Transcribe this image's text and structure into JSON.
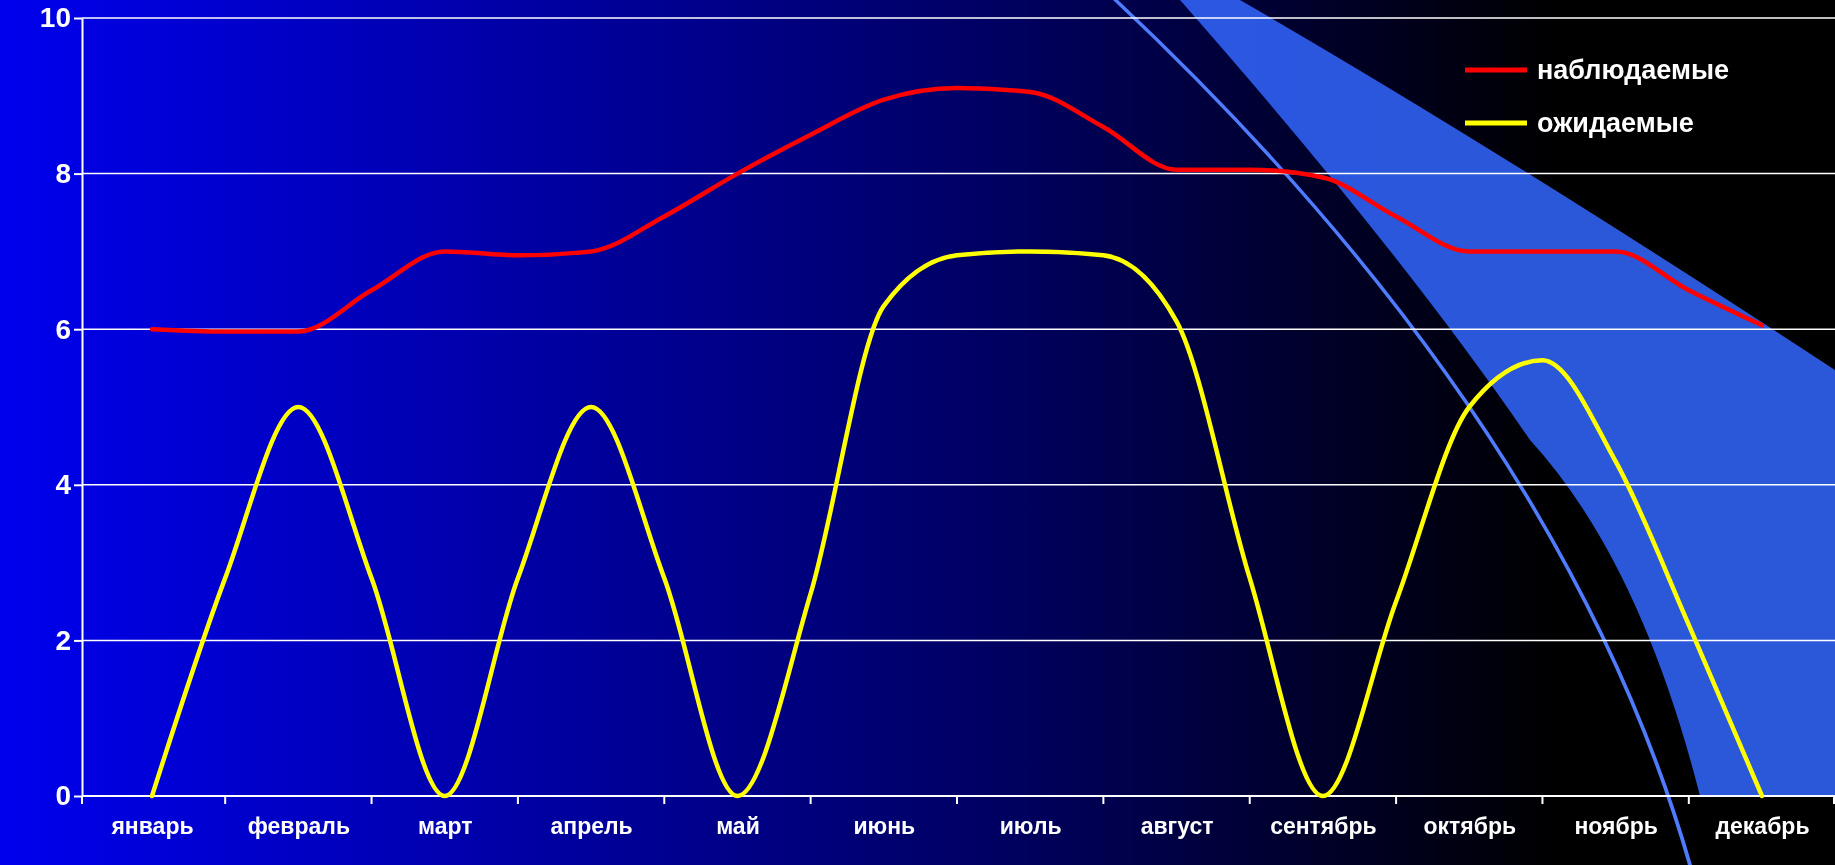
{
  "chart_data": {
    "type": "line",
    "categories": [
      "январь",
      null,
      "февраль",
      null,
      "март",
      null,
      "апрель",
      null,
      "май",
      null,
      "июнь",
      null,
      "июль",
      null,
      "август",
      null,
      "сентябрь",
      null,
      "октябрь",
      null,
      "ноябрь",
      null,
      "декабрь"
    ],
    "series": [
      {
        "name": "наблюдаемые",
        "color": "#ff0000",
        "values": [
          6.0,
          5.97,
          5.97,
          6.5,
          7.0,
          6.95,
          7.0,
          7.45,
          8.0,
          8.5,
          8.95,
          9.1,
          9.05,
          8.6,
          8.05,
          8.05,
          7.95,
          7.45,
          7.0,
          7.0,
          7.0,
          6.5,
          6.05
        ]
      },
      {
        "name": "ожидаемые",
        "color": "#ffff00",
        "values": [
          0,
          2.8,
          5,
          2.8,
          0,
          2.8,
          5,
          2.8,
          0,
          2.6,
          6.3,
          6.95,
          7.0,
          6.95,
          6.1,
          2.8,
          0,
          2.5,
          5.0,
          5.6,
          4.3,
          2.2,
          0
        ]
      }
    ],
    "ylim": [
      0,
      10
    ],
    "yticks": [
      0,
      2,
      4,
      6,
      8,
      10
    ],
    "grid": "y",
    "legend": "top right",
    "marker": "none",
    "line_style": "solid"
  }
}
